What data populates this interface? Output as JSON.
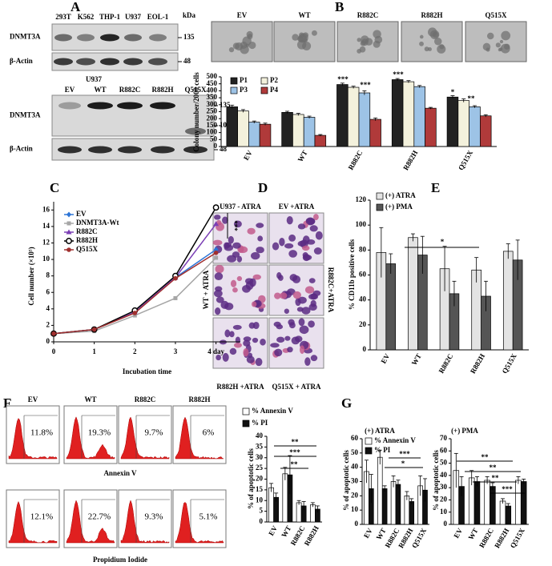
{
  "panels": {
    "A": {
      "label": "A",
      "blot_top": {
        "lanes": [
          "293T",
          "K562",
          "THP-1",
          "U937",
          "EOL-1"
        ],
        "rows": [
          "DNMT3A",
          "β-Actin"
        ],
        "markers": [
          "135",
          "48"
        ],
        "unit": "kDa"
      },
      "blot_bottom": {
        "title": "U937",
        "lanes": [
          "EV",
          "WT",
          "R882C",
          "R882H",
          "Q515X"
        ],
        "rows": [
          "DNMT3A",
          "β-Actin"
        ],
        "markers": [
          "135",
          "100",
          "48"
        ]
      }
    },
    "B": {
      "label": "B",
      "images": [
        "EV",
        "WT",
        "R882C",
        "R882H",
        "Q515X"
      ]
    },
    "C": {
      "label": "C"
    },
    "D": {
      "label": "D",
      "images": [
        "U937 - ATRA",
        "EV +ATRA",
        "WT + ATRA",
        "R882C+ATRA",
        "R882H +ATRA",
        "Q515X + ATRA"
      ]
    },
    "E": {
      "label": "E"
    },
    "F": {
      "label": "F",
      "samples": [
        "EV",
        "WT",
        "R882C",
        "R882H"
      ],
      "annexin": [
        "11.8%",
        "19.3%",
        "9.7%",
        "6%"
      ],
      "pi": [
        "12.1%",
        "22.7%",
        "9.3%",
        "5.1%"
      ],
      "annexin_axis": "Annexin V",
      "pi_axis": "Propidium Iodide"
    },
    "G": {
      "label": "G"
    }
  },
  "chart_data": [
    {
      "type": "bar",
      "ylabel": "Colony number/2000 cells",
      "categories": [
        "EV",
        "WT",
        "R882C",
        "R882H",
        "Q515X"
      ],
      "series": [
        {
          "name": "P1",
          "color": "#222222",
          "values": [
            285,
            245,
            445,
            480,
            355
          ],
          "errors": [
            12,
            8,
            10,
            8,
            10
          ]
        },
        {
          "name": "P2",
          "color": "#f3f1dc",
          "values": [
            255,
            230,
            425,
            465,
            330
          ],
          "errors": [
            10,
            8,
            8,
            8,
            12
          ]
        },
        {
          "name": "P3",
          "color": "#9dc3e6",
          "values": [
            175,
            210,
            385,
            430,
            285
          ],
          "errors": [
            8,
            8,
            15,
            8,
            8
          ]
        },
        {
          "name": "P4",
          "color": "#b03a3a",
          "values": [
            160,
            80,
            195,
            275,
            220
          ],
          "errors": [
            8,
            6,
            10,
            6,
            8
          ]
        }
      ],
      "ylim": [
        0,
        500
      ],
      "yticks": [
        0,
        50,
        100,
        150,
        200,
        250,
        300,
        350,
        400,
        450,
        500
      ],
      "annotations": [
        "***",
        "***",
        "***",
        "*",
        "**"
      ]
    },
    {
      "type": "line",
      "xlabel": "Incubation time",
      "ylabel": "Cell number (×10⁵)",
      "x": [
        0,
        1,
        2,
        3,
        4
      ],
      "series": [
        {
          "name": "EV",
          "color": "#2e75d6",
          "marker": "diamond",
          "values": [
            1,
            1.5,
            3.6,
            7.8,
            11.2
          ]
        },
        {
          "name": "DNMT3A-Wt",
          "color": "#a6a6a6",
          "marker": "square",
          "values": [
            1,
            1.3,
            3.2,
            5.3,
            10.2
          ]
        },
        {
          "name": "R882C",
          "color": "#7b3fb5",
          "marker": "triangle",
          "values": [
            1,
            1.5,
            3.6,
            7.8,
            14.3
          ]
        },
        {
          "name": "R882H",
          "color": "#000000",
          "marker": "open-circle",
          "values": [
            1,
            1.5,
            3.8,
            8,
            16.3
          ]
        },
        {
          "name": "Q515X",
          "color": "#a0302f",
          "marker": "circle",
          "values": [
            1,
            1.5,
            3.5,
            7.7,
            10.8
          ]
        }
      ],
      "xlim": [
        0,
        4.6
      ],
      "xticks": [
        0,
        1,
        2,
        3,
        {
          "value": 4,
          "label": "4 day"
        }
      ],
      "ylim": [
        0,
        17
      ],
      "yticks": [
        0,
        2,
        4,
        6,
        8,
        10,
        12,
        14,
        16
      ],
      "annotations": [
        "***"
      ]
    },
    {
      "type": "bar",
      "ylabel": "% CD11b positive cells",
      "categories": [
        "EV",
        "WT",
        "R882C",
        "R882H",
        "Q515X"
      ],
      "series": [
        {
          "name": "(+) ATRA",
          "color": "#e3e3e3",
          "values": [
            78,
            90,
            65,
            64,
            79
          ],
          "errors": [
            20,
            3,
            18,
            10,
            6
          ]
        },
        {
          "name": "(+) PMA",
          "color": "#555555",
          "values": [
            69,
            76,
            45,
            43,
            72
          ],
          "errors": [
            8,
            15,
            10,
            12,
            16
          ]
        }
      ],
      "ylim": [
        0,
        120
      ],
      "yticks": [
        0,
        20,
        40,
        60,
        80,
        100,
        120
      ],
      "annotations": [
        "*"
      ]
    },
    {
      "type": "bar",
      "ylabel": "% of apoptotic cells",
      "categories": [
        "EV",
        "WT",
        "R882C",
        "R882H"
      ],
      "series": [
        {
          "name": "% Annexin V",
          "color": "#ffffff",
          "values": [
            16,
            22.5,
            9,
            8
          ],
          "errors": [
            2,
            3,
            1,
            1
          ]
        },
        {
          "name": "% PI",
          "color": "#111111",
          "values": [
            11.5,
            22,
            7.5,
            6
          ],
          "errors": [
            2,
            9,
            2,
            1.5
          ]
        }
      ],
      "ylim": [
        0,
        40
      ],
      "yticks": [
        0,
        5,
        10,
        15,
        20,
        25,
        30,
        35,
        40
      ],
      "annotations": [
        "**",
        "***",
        "**"
      ]
    },
    {
      "type": "bar",
      "title": "(+) ATRA",
      "ylabel": "% of apoptotic cells",
      "categories": [
        "EV",
        "WT",
        "R882C",
        "R882H",
        "Q515X"
      ],
      "series": [
        {
          "name": "% Annexin V",
          "color": "#ffffff",
          "values": [
            37,
            47,
            30,
            20,
            27
          ],
          "errors": [
            8,
            5,
            4,
            3,
            7
          ]
        },
        {
          "name": "% PI",
          "color": "#111111",
          "values": [
            25,
            25,
            28,
            16,
            24
          ],
          "errors": [
            10,
            2,
            3,
            2,
            8
          ]
        }
      ],
      "ylim": [
        0,
        60
      ],
      "yticks": [
        0,
        10,
        20,
        30,
        40,
        50,
        60
      ],
      "annotations": [
        "***",
        "*"
      ]
    },
    {
      "type": "bar",
      "title": "(+) PMA",
      "ylabel": "% of apoptotic cells",
      "categories": [
        "EV",
        "WT",
        "R882C",
        "R882H",
        "Q515X"
      ],
      "series": [
        {
          "color": "#ffffff",
          "values": [
            44,
            38,
            36,
            19,
            36
          ],
          "errors": [
            14,
            6,
            3,
            2,
            3
          ]
        },
        {
          "color": "#111111",
          "values": [
            31,
            35,
            31,
            15,
            35
          ],
          "errors": [
            8,
            4,
            3,
            2,
            2
          ]
        }
      ],
      "ylim": [
        0,
        70
      ],
      "yticks": [
        0,
        10,
        20,
        30,
        40,
        50,
        60,
        70
      ],
      "annotations": [
        "**",
        "**",
        "**",
        "***"
      ]
    }
  ]
}
